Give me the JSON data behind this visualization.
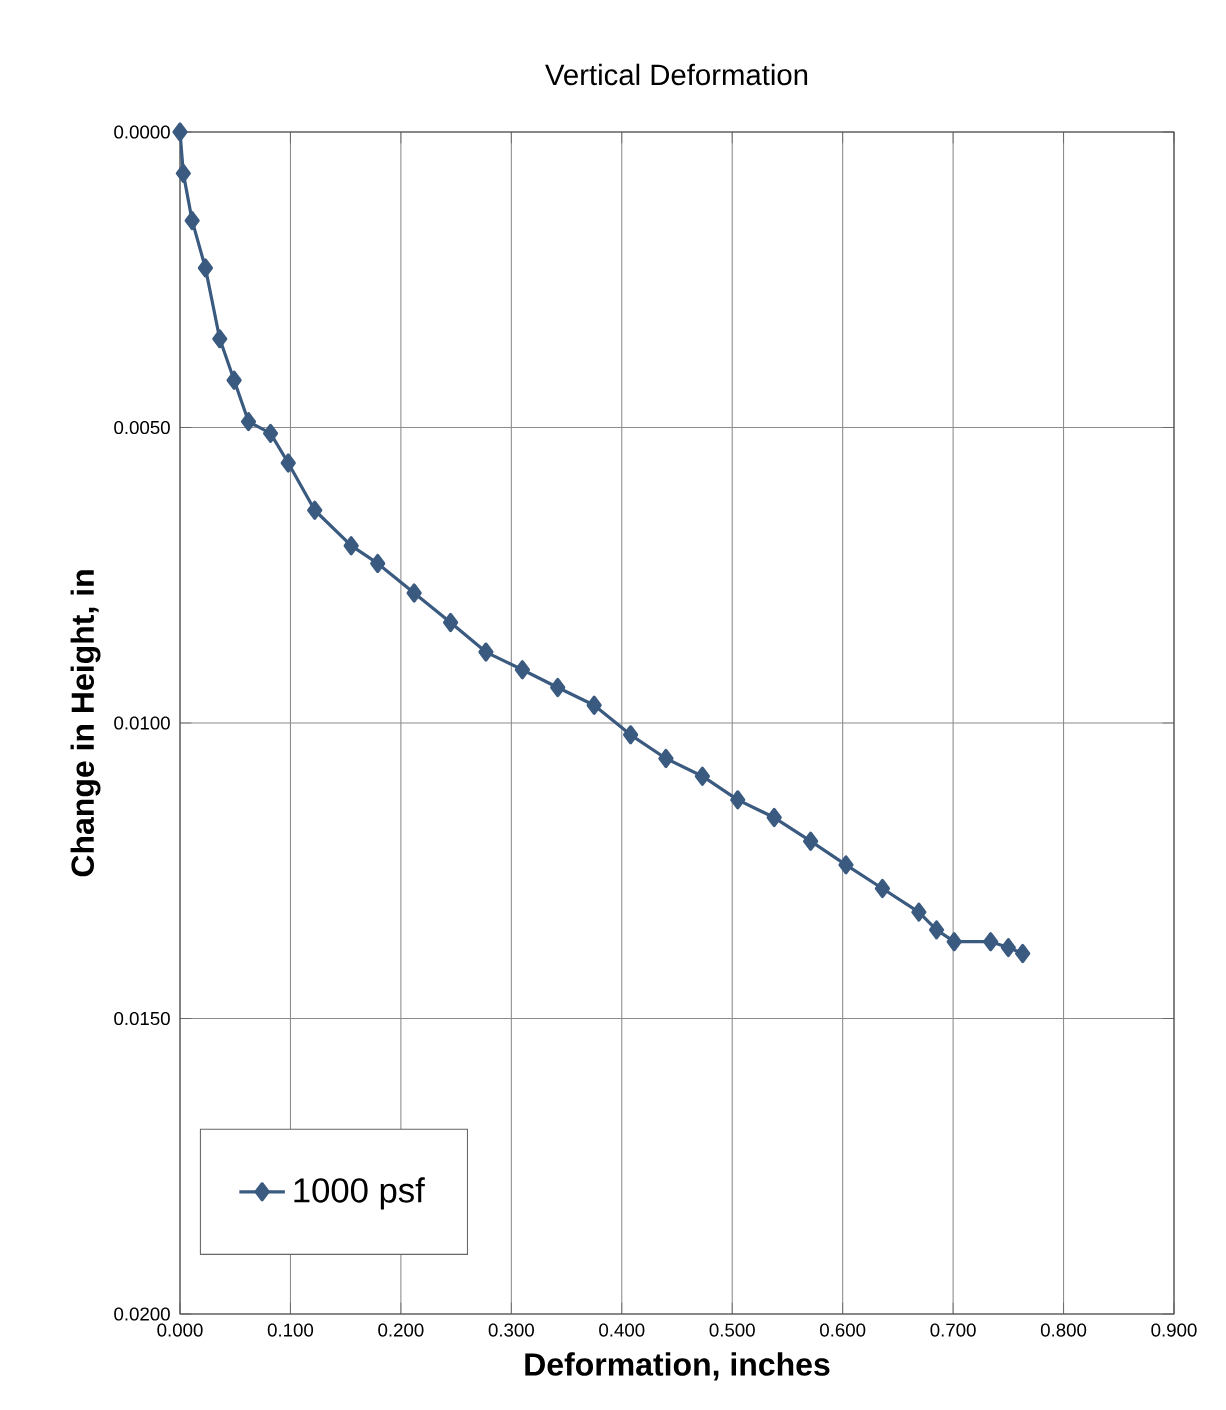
{
  "chart_data": {
    "type": "line",
    "title": "Vertical Deformation",
    "xlabel": "Deformation, inches",
    "ylabel": "Change in Height, in",
    "x": [
      0.0,
      0.003,
      0.011,
      0.023,
      0.036,
      0.049,
      0.062,
      0.082,
      0.098,
      0.122,
      0.155,
      0.179,
      0.212,
      0.245,
      0.277,
      0.31,
      0.342,
      0.375,
      0.408,
      0.44,
      0.473,
      0.505,
      0.538,
      0.571,
      0.603,
      0.636,
      0.669,
      0.685,
      0.701,
      0.734,
      0.75,
      0.763
    ],
    "series": [
      {
        "name": "1000 psf",
        "color": "#3a5a80",
        "values": [
          0.0,
          0.0007,
          0.0015,
          0.0023,
          0.0035,
          0.0042,
          0.0049,
          0.0051,
          0.0056,
          0.0064,
          0.007,
          0.0073,
          0.0078,
          0.0083,
          0.0088,
          0.0091,
          0.0094,
          0.0097,
          0.0102,
          0.0106,
          0.0109,
          0.0113,
          0.0116,
          0.012,
          0.0124,
          0.0128,
          0.0132,
          0.0135,
          0.0137,
          0.0137,
          0.0138,
          0.0139
        ]
      }
    ],
    "xlim": [
      0,
      0.9
    ],
    "ylim": [
      0.02,
      0
    ],
    "xticks": [
      {
        "value": 0,
        "label": "0.000"
      },
      {
        "value": 0.1,
        "label": "0.100"
      },
      {
        "value": 0.2,
        "label": "0.200"
      },
      {
        "value": 0.3,
        "label": "0.300"
      },
      {
        "value": 0.4,
        "label": "0.400"
      },
      {
        "value": 0.5,
        "label": "0.500"
      },
      {
        "value": 0.6,
        "label": "0.600"
      },
      {
        "value": 0.7,
        "label": "0.700"
      },
      {
        "value": 0.8,
        "label": "0.800"
      },
      {
        "value": 0.9,
        "label": "0.900"
      }
    ],
    "yticks": [
      {
        "value": 0,
        "label": "0.0000"
      },
      {
        "value": 0.005,
        "label": "0.0050"
      },
      {
        "value": 0.01,
        "label": "0.0100"
      },
      {
        "value": 0.015,
        "label": "0.0150"
      },
      {
        "value": 0.02,
        "label": "0.0200"
      }
    ],
    "grid": true,
    "legend": "bottom left",
    "marker": "diamond",
    "line_style": "solid"
  }
}
